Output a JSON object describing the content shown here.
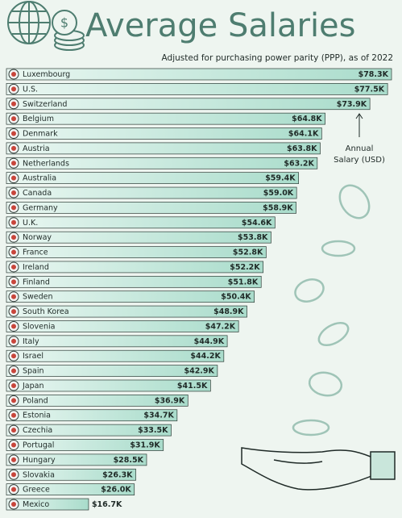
{
  "chart_data": {
    "type": "bar",
    "orientation": "horizontal",
    "title": "Average Salaries",
    "subtitle": "Adjusted for purchasing power parity (PPP), as of 2022",
    "annotation": [
      "Annual",
      "Salary (USD)"
    ],
    "color": "#b4e2d2",
    "categories": [
      "Luxembourg",
      "U.S.",
      "Switzerland",
      "Belgium",
      "Denmark",
      "Austria",
      "Netherlands",
      "Australia",
      "Canada",
      "Germany",
      "U.K.",
      "Norway",
      "France",
      "Ireland",
      "Finland",
      "Sweden",
      "South Korea",
      "Slovenia",
      "Italy",
      "Israel",
      "Spain",
      "Japan",
      "Poland",
      "Estonia",
      "Czechia",
      "Portugal",
      "Hungary",
      "Slovakia",
      "Greece",
      "Mexico"
    ],
    "values": [
      78.3,
      77.5,
      73.9,
      64.8,
      64.1,
      63.8,
      63.2,
      59.4,
      59.0,
      58.9,
      54.6,
      53.8,
      52.8,
      52.2,
      51.8,
      50.4,
      48.9,
      47.2,
      44.9,
      44.2,
      42.9,
      41.5,
      36.9,
      34.7,
      33.5,
      31.9,
      28.5,
      26.3,
      26.0,
      16.7
    ],
    "value_labels": [
      "$78.3K",
      "$77.5K",
      "$73.9K",
      "$64.8K",
      "$64.1K",
      "$63.8K",
      "$63.2K",
      "$59.4K",
      "$59.0K",
      "$58.9K",
      "$54.6K",
      "$53.8K",
      "$52.8K",
      "$52.2K",
      "$51.8K",
      "$50.4K",
      "$48.9K",
      "$47.2K",
      "$44.9K",
      "$44.2K",
      "$42.9K",
      "$41.5K",
      "$36.9K",
      "$34.7K",
      "$33.5K",
      "$31.9K",
      "$28.5K",
      "$26.3K",
      "$26.0K",
      "$16.7K"
    ]
  }
}
